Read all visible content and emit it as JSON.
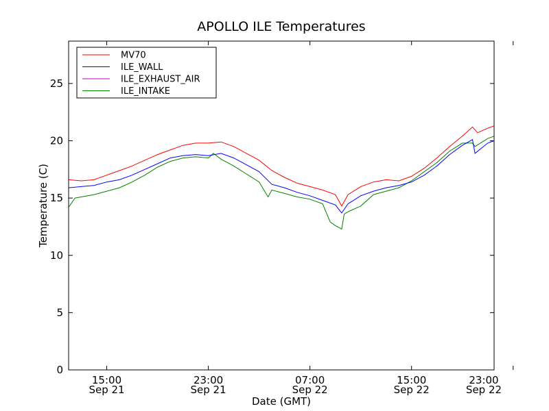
{
  "chart_data": {
    "type": "line",
    "title": "APOLLO ILE Temperatures",
    "xlabel": "Date (GMT)",
    "ylabel": "Temperature (C)",
    "xlim_hours": [
      0,
      33.5
    ],
    "ylim": [
      0,
      28.7
    ],
    "yticks": [
      0,
      5,
      10,
      15,
      20,
      25
    ],
    "xticks": [
      {
        "hour": 3,
        "time": "15:00",
        "date": "Sep 21"
      },
      {
        "hour": 11,
        "time": "23:00",
        "date": "Sep 21"
      },
      {
        "hour": 19,
        "time": "07:00",
        "date": "Sep 22"
      },
      {
        "hour": 27,
        "time": "15:00",
        "date": "Sep 22"
      },
      {
        "hour": 35,
        "time": "23:00",
        "date": "Sep 22"
      }
    ],
    "legend_position": "top-left",
    "series": [
      {
        "name": "MV70",
        "color": "#ff0000",
        "points": [
          [
            0,
            16.6
          ],
          [
            1,
            16.5
          ],
          [
            2,
            16.6
          ],
          [
            3,
            17.0
          ],
          [
            4,
            17.4
          ],
          [
            5,
            17.8
          ],
          [
            6,
            18.3
          ],
          [
            7,
            18.8
          ],
          [
            8,
            19.2
          ],
          [
            9,
            19.6
          ],
          [
            10,
            19.8
          ],
          [
            11,
            19.8
          ],
          [
            12,
            19.9
          ],
          [
            13,
            19.5
          ],
          [
            14,
            18.9
          ],
          [
            15,
            18.3
          ],
          [
            16,
            17.4
          ],
          [
            17,
            16.8
          ],
          [
            18,
            16.3
          ],
          [
            19,
            16.0
          ],
          [
            20,
            15.7
          ],
          [
            21,
            15.3
          ],
          [
            21.5,
            14.3
          ],
          [
            22,
            15.3
          ],
          [
            23,
            16.0
          ],
          [
            24,
            16.4
          ],
          [
            25,
            16.6
          ],
          [
            26,
            16.5
          ],
          [
            27,
            16.9
          ],
          [
            28,
            17.6
          ],
          [
            29,
            18.5
          ],
          [
            30,
            19.5
          ],
          [
            31,
            20.4
          ],
          [
            31.8,
            21.2
          ],
          [
            32.2,
            20.7
          ],
          [
            33,
            21.1
          ],
          [
            33.5,
            21.3
          ]
        ]
      },
      {
        "name": "ILE_WALL",
        "color": "#0000ff",
        "points": [
          [
            0,
            15.9
          ],
          [
            1,
            16.0
          ],
          [
            2,
            16.1
          ],
          [
            3,
            16.4
          ],
          [
            4,
            16.6
          ],
          [
            5,
            17.0
          ],
          [
            6,
            17.5
          ],
          [
            7,
            18.0
          ],
          [
            8,
            18.5
          ],
          [
            9,
            18.7
          ],
          [
            10,
            18.8
          ],
          [
            11,
            18.7
          ],
          [
            12,
            18.9
          ],
          [
            13,
            18.5
          ],
          [
            14,
            17.9
          ],
          [
            15,
            17.3
          ],
          [
            16,
            16.2
          ],
          [
            17,
            15.9
          ],
          [
            18,
            15.5
          ],
          [
            19,
            15.2
          ],
          [
            20,
            14.8
          ],
          [
            21,
            14.4
          ],
          [
            21.5,
            13.7
          ],
          [
            22,
            14.5
          ],
          [
            23,
            15.2
          ],
          [
            24,
            15.6
          ],
          [
            25,
            15.9
          ],
          [
            26,
            16.1
          ],
          [
            27,
            16.4
          ],
          [
            28,
            17.0
          ],
          [
            29,
            17.8
          ],
          [
            30,
            18.8
          ],
          [
            31,
            19.6
          ],
          [
            31.8,
            20.1
          ],
          [
            32,
            18.9
          ],
          [
            33,
            19.8
          ],
          [
            33.5,
            20.0
          ]
        ]
      },
      {
        "name": "ILE_EXHAUST_AIR",
        "color": "#bf00bf",
        "points": []
      },
      {
        "name": "ILE_INTAKE",
        "color": "#008000",
        "points": [
          [
            0,
            14.2
          ],
          [
            0.5,
            15.0
          ],
          [
            1,
            15.1
          ],
          [
            2,
            15.3
          ],
          [
            3,
            15.6
          ],
          [
            4,
            15.9
          ],
          [
            5,
            16.4
          ],
          [
            6,
            17.0
          ],
          [
            7,
            17.7
          ],
          [
            8,
            18.2
          ],
          [
            9,
            18.5
          ],
          [
            10,
            18.6
          ],
          [
            11,
            18.5
          ],
          [
            11.4,
            18.9
          ],
          [
            12,
            18.4
          ],
          [
            13,
            17.8
          ],
          [
            14,
            17.1
          ],
          [
            15,
            16.4
          ],
          [
            15.7,
            15.1
          ],
          [
            16,
            15.7
          ],
          [
            17,
            15.4
          ],
          [
            18,
            15.1
          ],
          [
            19,
            14.9
          ],
          [
            20,
            14.5
          ],
          [
            20.6,
            12.9
          ],
          [
            21,
            12.6
          ],
          [
            21.5,
            12.3
          ],
          [
            21.7,
            13.6
          ],
          [
            22,
            13.8
          ],
          [
            23,
            14.3
          ],
          [
            24,
            15.3
          ],
          [
            25,
            15.6
          ],
          [
            26,
            15.9
          ],
          [
            27,
            16.5
          ],
          [
            28,
            17.3
          ],
          [
            29,
            18.1
          ],
          [
            30,
            19.1
          ],
          [
            31,
            19.8
          ],
          [
            31.8,
            19.8
          ],
          [
            32,
            19.5
          ],
          [
            33,
            20.2
          ],
          [
            33.5,
            20.4
          ]
        ]
      }
    ]
  }
}
